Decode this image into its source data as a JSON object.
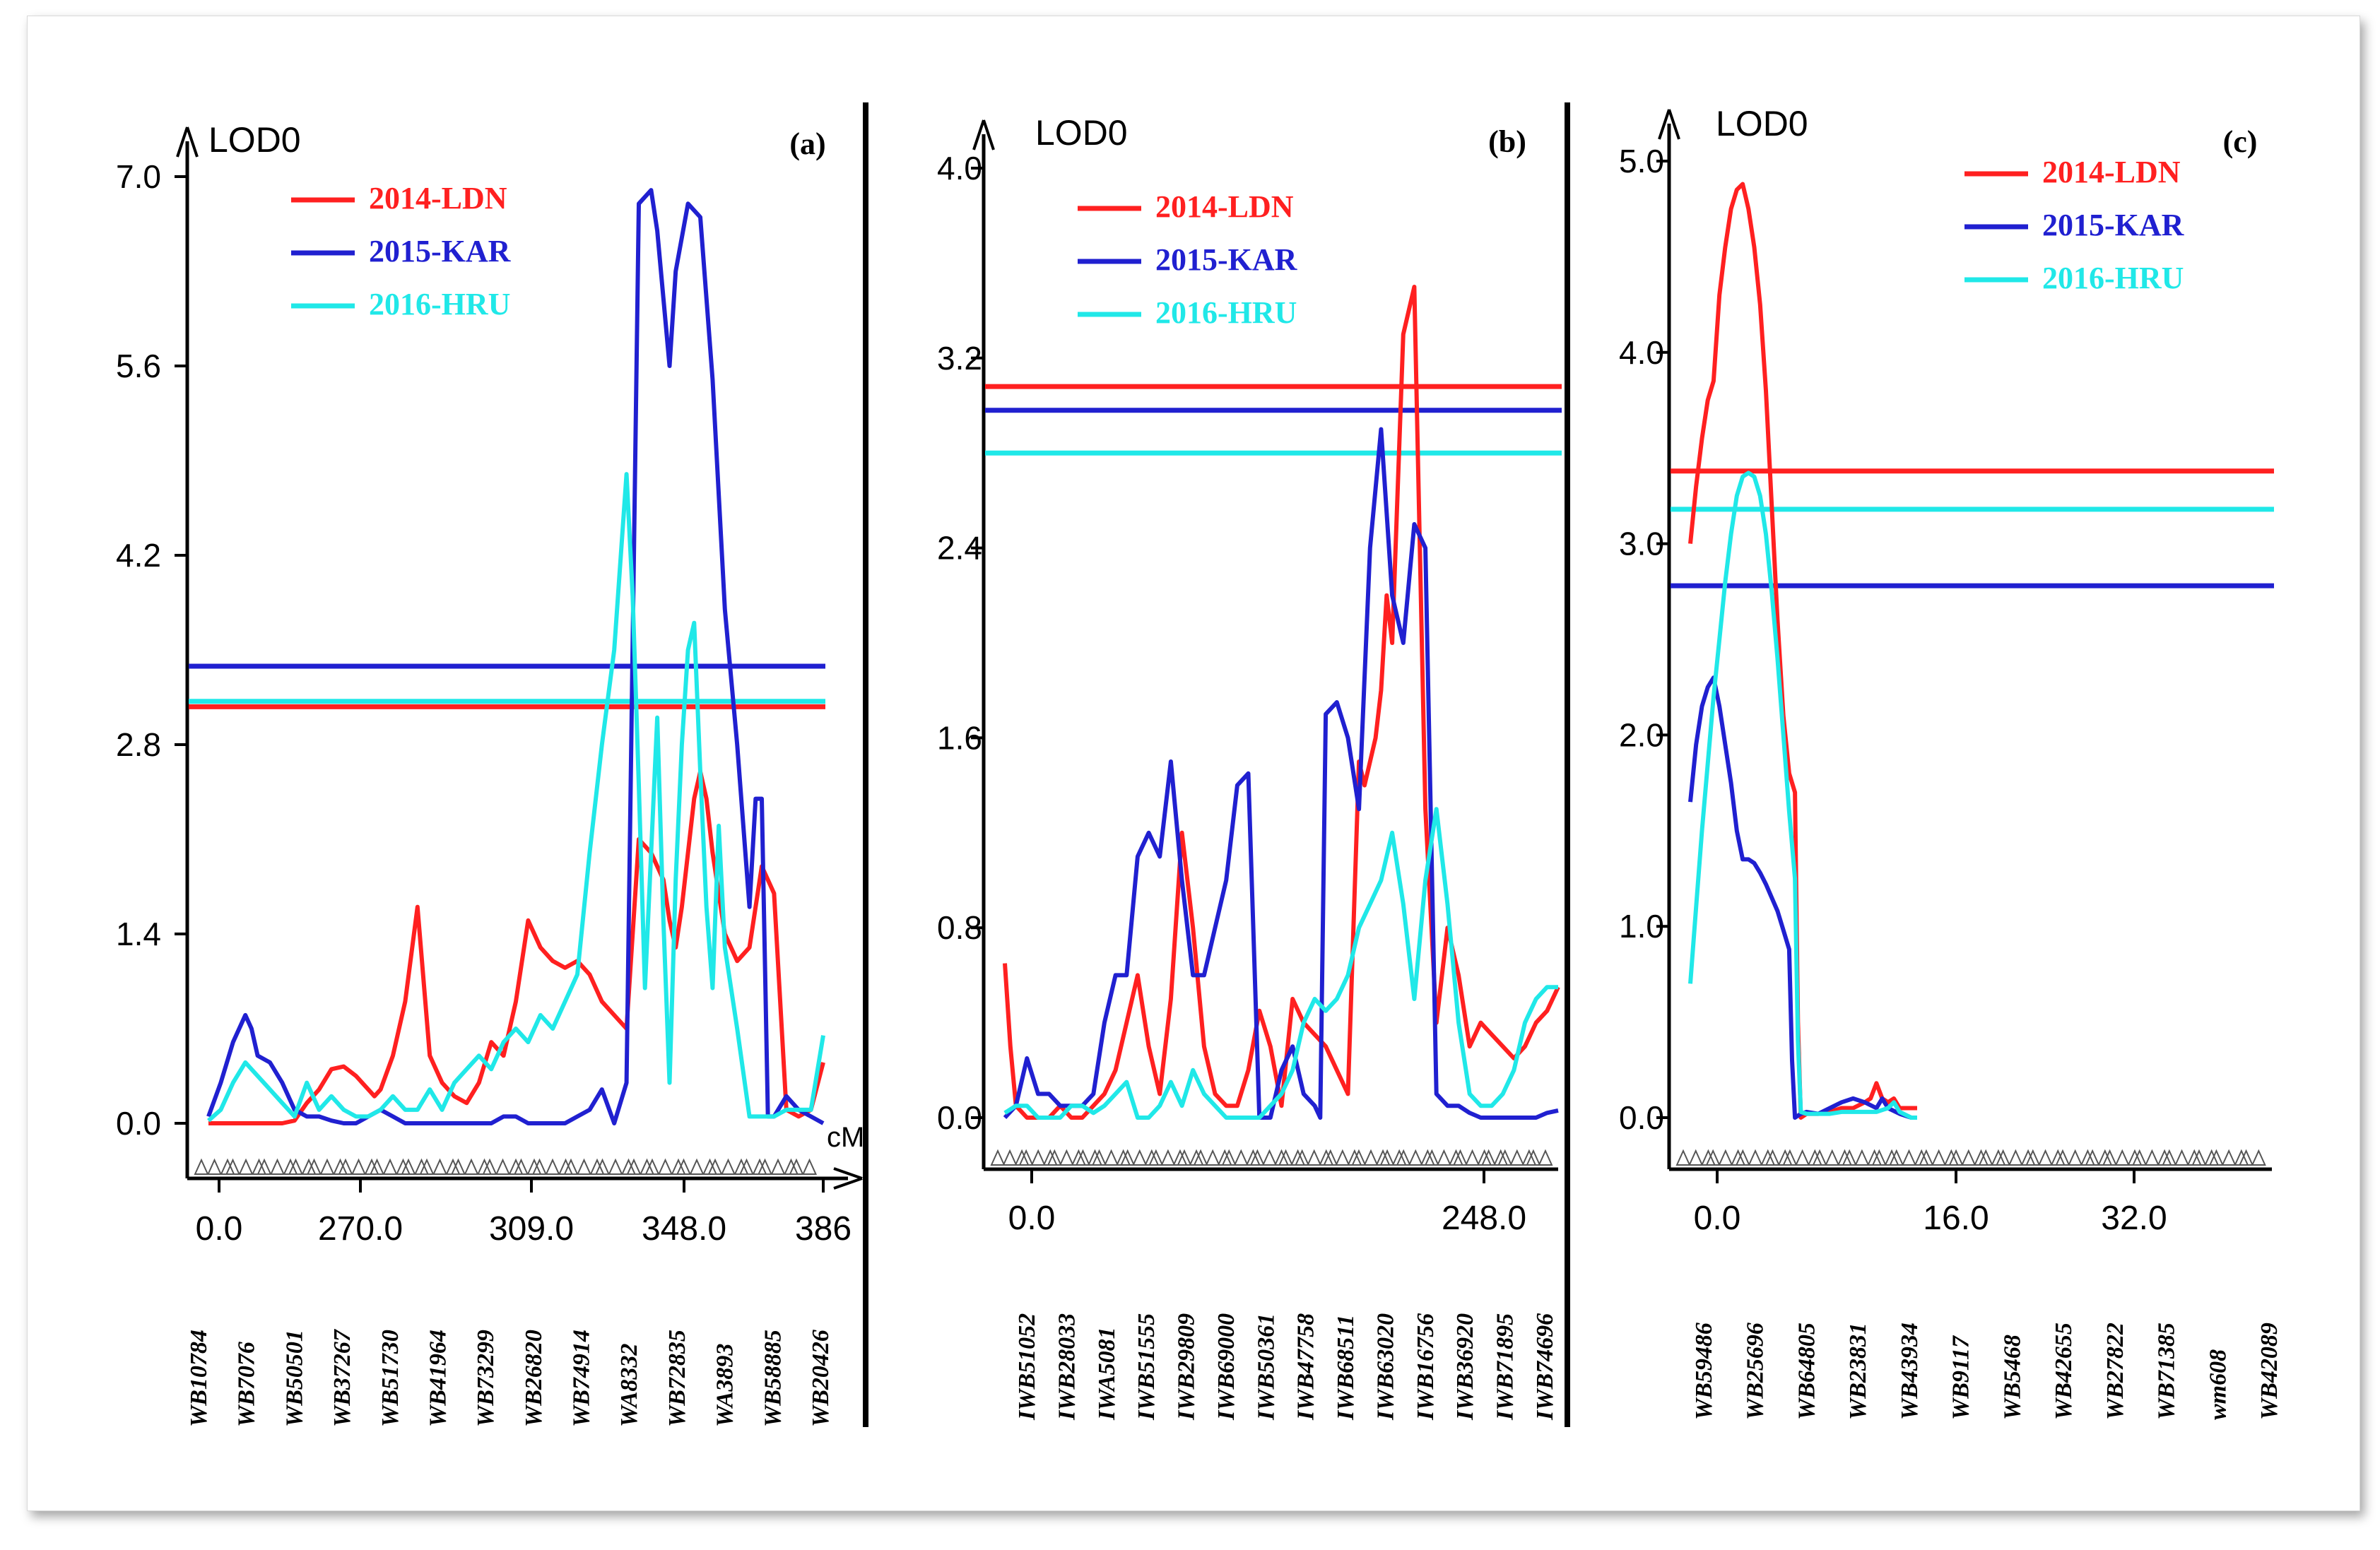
{
  "figure": {
    "colors": {
      "ldn": "#ff2020",
      "kar": "#2020d0",
      "hru": "#20e8e8",
      "axis": "#000000"
    }
  },
  "chart_data": [
    {
      "id": "a",
      "type": "line",
      "panel_label": "(a)",
      "ylabel": "LOD0",
      "xlabel": "cM",
      "ylim": [
        0,
        7.0
      ],
      "y_ticks": [
        "0.0",
        "1.4",
        "2.8",
        "4.2",
        "5.6",
        "7.0"
      ],
      "x_ticks": [
        "0.0",
        "270.0",
        "309.0",
        "348.0",
        "386"
      ],
      "markers": [
        "WB10784",
        "WB7076",
        "WB50501",
        "WB37267",
        "WB51730",
        "WB41964",
        "WB73299",
        "WB26820",
        "WB74914",
        "WA8332",
        "WB72835",
        "WA3893",
        "WB58885",
        "WB20426"
      ],
      "thresholds": [
        {
          "series": "2015-KAR",
          "value": 3.38
        },
        {
          "series": "2016-HRU",
          "value": 3.12
        },
        {
          "series": "2014-LDN",
          "value": 3.08
        }
      ],
      "series": [
        {
          "name": "2014-LDN",
          "color": "#ff2020",
          "x": [
            0,
            2,
            4,
            6,
            8,
            10,
            12,
            14,
            16,
            18,
            20,
            22,
            24,
            26,
            27,
            28,
            30,
            32,
            34,
            36,
            38,
            40,
            42,
            44,
            46,
            48,
            50,
            52,
            54,
            56,
            58,
            60,
            62,
            64,
            66,
            68,
            70,
            72,
            74,
            75,
            76,
            77,
            78,
            79,
            80,
            81,
            82,
            84,
            86,
            88,
            90,
            92,
            94,
            96,
            98,
            100
          ],
          "values": [
            0.0,
            0.0,
            0.0,
            0.0,
            0.0,
            0.0,
            0.0,
            0.02,
            0.15,
            0.25,
            0.4,
            0.42,
            0.35,
            0.25,
            0.2,
            0.25,
            0.5,
            0.9,
            1.6,
            0.5,
            0.3,
            0.2,
            0.15,
            0.3,
            0.6,
            0.5,
            0.9,
            1.5,
            1.3,
            1.2,
            1.15,
            1.2,
            1.1,
            0.9,
            0.8,
            0.7,
            2.1,
            2.0,
            1.8,
            1.5,
            1.3,
            1.6,
            2.0,
            2.4,
            2.6,
            2.4,
            2.0,
            1.4,
            1.2,
            1.3,
            1.9,
            1.7,
            0.1,
            0.05,
            0.1,
            0.45
          ]
        },
        {
          "name": "2015-KAR",
          "color": "#2020d0",
          "x": [
            0,
            2,
            4,
            6,
            7,
            8,
            10,
            12,
            14,
            16,
            18,
            20,
            22,
            24,
            26,
            28,
            30,
            32,
            34,
            36,
            38,
            40,
            42,
            44,
            46,
            48,
            50,
            52,
            54,
            56,
            58,
            60,
            62,
            64,
            66,
            68,
            70,
            72,
            73,
            74,
            75,
            76,
            78,
            80,
            82,
            84,
            86,
            88,
            89,
            90,
            91,
            92,
            94,
            96,
            98,
            100
          ],
          "values": [
            0.05,
            0.3,
            0.6,
            0.8,
            0.7,
            0.5,
            0.45,
            0.3,
            0.1,
            0.05,
            0.05,
            0.02,
            0.0,
            0.0,
            0.05,
            0.1,
            0.05,
            0.0,
            0.0,
            0.0,
            0.0,
            0.0,
            0.0,
            0.0,
            0.0,
            0.05,
            0.05,
            0.0,
            0.0,
            0.0,
            0.0,
            0.05,
            0.1,
            0.25,
            0.0,
            0.3,
            6.8,
            6.9,
            6.6,
            6.1,
            5.6,
            6.3,
            6.8,
            6.7,
            5.5,
            3.8,
            2.8,
            1.6,
            2.4,
            2.4,
            0.05,
            0.05,
            0.2,
            0.1,
            0.05,
            0.0
          ]
        },
        {
          "name": "2016-HRU",
          "color": "#20e8e8",
          "x": [
            0,
            2,
            4,
            6,
            8,
            10,
            12,
            14,
            16,
            18,
            20,
            22,
            24,
            26,
            28,
            30,
            32,
            34,
            36,
            38,
            40,
            42,
            44,
            46,
            48,
            50,
            52,
            54,
            56,
            58,
            60,
            62,
            64,
            66,
            68,
            69,
            70,
            71,
            72,
            73,
            74,
            75,
            76,
            77,
            78,
            79,
            80,
            81,
            82,
            83,
            84,
            86,
            88,
            90,
            92,
            94,
            96,
            98,
            100
          ],
          "values": [
            0.02,
            0.1,
            0.3,
            0.45,
            0.35,
            0.25,
            0.15,
            0.05,
            0.3,
            0.1,
            0.2,
            0.1,
            0.05,
            0.05,
            0.1,
            0.2,
            0.1,
            0.1,
            0.25,
            0.1,
            0.3,
            0.4,
            0.5,
            0.4,
            0.6,
            0.7,
            0.6,
            0.8,
            0.7,
            0.9,
            1.1,
            2.0,
            2.8,
            3.5,
            4.8,
            3.9,
            2.5,
            1.0,
            2.0,
            3.0,
            1.5,
            0.3,
            1.8,
            2.8,
            3.5,
            3.7,
            2.6,
            1.6,
            1.0,
            2.2,
            1.3,
            0.7,
            0.05,
            0.05,
            0.05,
            0.1,
            0.1,
            0.1,
            0.65
          ]
        }
      ]
    },
    {
      "id": "b",
      "type": "line",
      "panel_label": "(b)",
      "ylabel": "LOD0",
      "xlabel": "",
      "ylim": [
        0,
        4.0
      ],
      "y_ticks": [
        "0.0",
        "0.8",
        "1.6",
        "2.4",
        "3.2",
        "4.0"
      ],
      "x_ticks": [
        "0.0",
        "248.0"
      ],
      "markers": [
        "IWB51052",
        "IWB28033",
        "IWA5081",
        "IWB51555",
        "IWB29809",
        "IWB69000",
        "IWB50361",
        "IWB47758",
        "IWB68511",
        "IWB63020",
        "IWB16756",
        "IWB36920",
        "IWB71895",
        "IWB74696"
      ],
      "thresholds": [
        {
          "series": "2014-LDN",
          "value": 3.08
        },
        {
          "series": "2015-KAR",
          "value": 2.98
        },
        {
          "series": "2016-HRU",
          "value": 2.8
        }
      ],
      "series": [
        {
          "name": "2014-LDN",
          "color": "#ff2020",
          "x": [
            0,
            1,
            2,
            4,
            6,
            8,
            10,
            12,
            14,
            16,
            18,
            20,
            22,
            24,
            26,
            28,
            30,
            32,
            34,
            36,
            38,
            40,
            42,
            44,
            46,
            48,
            50,
            52,
            54,
            56,
            58,
            60,
            62,
            64,
            65,
            66,
            67,
            68,
            69,
            70,
            72,
            74,
            76,
            78,
            80,
            82,
            84,
            86,
            88,
            90,
            92,
            94,
            96,
            98,
            100
          ],
          "values": [
            0.65,
            0.3,
            0.05,
            0.0,
            0.0,
            0.0,
            0.05,
            0.0,
            0.0,
            0.05,
            0.1,
            0.2,
            0.4,
            0.6,
            0.3,
            0.1,
            0.5,
            1.2,
            0.8,
            0.3,
            0.1,
            0.05,
            0.05,
            0.2,
            0.45,
            0.3,
            0.05,
            0.5,
            0.4,
            0.35,
            0.3,
            0.2,
            0.1,
            1.5,
            1.4,
            1.5,
            1.6,
            1.8,
            2.2,
            2.0,
            3.3,
            3.5,
            1.3,
            0.4,
            0.8,
            0.6,
            0.3,
            0.4,
            0.35,
            0.3,
            0.25,
            0.3,
            0.4,
            0.45,
            0.55
          ]
        },
        {
          "name": "2015-KAR",
          "color": "#2020d0",
          "x": [
            0,
            2,
            4,
            6,
            8,
            10,
            12,
            14,
            16,
            18,
            20,
            22,
            24,
            26,
            28,
            30,
            32,
            34,
            36,
            38,
            40,
            42,
            44,
            46,
            48,
            50,
            52,
            54,
            56,
            57,
            58,
            60,
            62,
            64,
            66,
            68,
            70,
            72,
            74,
            76,
            78,
            80,
            82,
            84,
            86,
            88,
            90,
            92,
            94,
            96,
            98,
            100
          ],
          "values": [
            0.0,
            0.05,
            0.25,
            0.1,
            0.1,
            0.05,
            0.05,
            0.05,
            0.1,
            0.4,
            0.6,
            0.6,
            1.1,
            1.2,
            1.1,
            1.5,
            1.0,
            0.6,
            0.6,
            0.8,
            1.0,
            1.4,
            1.45,
            0.0,
            0.0,
            0.2,
            0.3,
            0.1,
            0.05,
            0.0,
            1.7,
            1.75,
            1.6,
            1.3,
            2.4,
            2.9,
            2.2,
            2.0,
            2.5,
            2.4,
            0.1,
            0.05,
            0.05,
            0.02,
            0.0,
            0.0,
            0.0,
            0.0,
            0.0,
            0.0,
            0.02,
            0.03
          ]
        },
        {
          "name": "2016-HRU",
          "color": "#20e8e8",
          "x": [
            0,
            2,
            4,
            6,
            8,
            10,
            12,
            14,
            16,
            18,
            20,
            22,
            24,
            26,
            28,
            30,
            32,
            34,
            36,
            38,
            40,
            42,
            44,
            46,
            48,
            50,
            52,
            54,
            56,
            58,
            60,
            62,
            64,
            66,
            68,
            70,
            72,
            74,
            76,
            78,
            80,
            82,
            84,
            86,
            88,
            90,
            92,
            94,
            96,
            98,
            100
          ],
          "values": [
            0.02,
            0.05,
            0.05,
            0.0,
            0.0,
            0.0,
            0.05,
            0.05,
            0.02,
            0.05,
            0.1,
            0.15,
            0.0,
            0.0,
            0.05,
            0.15,
            0.05,
            0.2,
            0.1,
            0.05,
            0.0,
            0.0,
            0.0,
            0.0,
            0.05,
            0.1,
            0.2,
            0.4,
            0.5,
            0.45,
            0.5,
            0.6,
            0.8,
            0.9,
            1.0,
            1.2,
            0.9,
            0.5,
            1.0,
            1.3,
            0.9,
            0.4,
            0.1,
            0.05,
            0.05,
            0.1,
            0.2,
            0.4,
            0.5,
            0.55,
            0.55
          ]
        }
      ]
    },
    {
      "id": "c",
      "type": "line",
      "panel_label": "(c)",
      "ylabel": "LOD0",
      "xlabel": "",
      "ylim": [
        0,
        5.0
      ],
      "y_ticks": [
        "0.0",
        "1.0",
        "2.0",
        "3.0",
        "4.0",
        "5.0"
      ],
      "x_ticks": [
        "0.0",
        "16.0",
        "32.0"
      ],
      "markers": [
        "WB59486",
        "WB25696",
        "WB64805",
        "WB23831",
        "WB43934",
        "WB9117",
        "WB5468",
        "WB42655",
        "WB27822",
        "WB71385",
        "wm608",
        "WB42089"
      ],
      "thresholds": [
        {
          "series": "2014-LDN",
          "value": 3.38
        },
        {
          "series": "2016-HRU",
          "value": 3.18
        },
        {
          "series": "2015-KAR",
          "value": 2.78
        }
      ],
      "series": [
        {
          "name": "2014-LDN",
          "color": "#ff2020",
          "x": [
            0,
            1,
            2,
            3,
            4,
            5,
            6,
            7,
            8,
            9,
            10,
            11,
            12,
            13,
            14,
            15,
            16,
            17,
            18,
            18.5,
            19,
            20,
            22,
            24,
            26,
            28,
            30,
            31,
            32,
            33,
            34,
            35,
            36,
            38,
            39
          ],
          "values": [
            3.0,
            3.3,
            3.55,
            3.75,
            3.85,
            4.3,
            4.55,
            4.75,
            4.85,
            4.88,
            4.75,
            4.55,
            4.25,
            3.8,
            3.2,
            2.6,
            2.1,
            1.8,
            1.7,
            0.5,
            0.0,
            0.02,
            0.02,
            0.03,
            0.05,
            0.05,
            0.08,
            0.1,
            0.18,
            0.1,
            0.08,
            0.1,
            0.05,
            0.05,
            0.05
          ]
        },
        {
          "name": "2015-KAR",
          "color": "#2020d0",
          "x": [
            0,
            1,
            2,
            3,
            4,
            5,
            6,
            7,
            8,
            9,
            10,
            11,
            12,
            13,
            14,
            15,
            16,
            17,
            17.5,
            18,
            19,
            20,
            22,
            24,
            26,
            28,
            30,
            32,
            33,
            34,
            36,
            38,
            39
          ],
          "values": [
            1.65,
            1.95,
            2.15,
            2.25,
            2.3,
            2.15,
            1.95,
            1.75,
            1.5,
            1.35,
            1.35,
            1.33,
            1.28,
            1.22,
            1.15,
            1.08,
            0.98,
            0.88,
            0.3,
            0.0,
            0.02,
            0.03,
            0.02,
            0.05,
            0.08,
            0.1,
            0.08,
            0.05,
            0.1,
            0.05,
            0.02,
            0.0,
            0.0
          ]
        },
        {
          "name": "2016-HRU",
          "color": "#20e8e8",
          "x": [
            0,
            1,
            2,
            3,
            4,
            5,
            6,
            7,
            8,
            9,
            10,
            11,
            12,
            13,
            14,
            15,
            16,
            17,
            18,
            18.5,
            19,
            20,
            22,
            24,
            26,
            28,
            30,
            32,
            34,
            35,
            36,
            38,
            39
          ],
          "values": [
            0.7,
            1.1,
            1.5,
            1.85,
            2.2,
            2.5,
            2.8,
            3.05,
            3.25,
            3.35,
            3.37,
            3.35,
            3.25,
            3.05,
            2.75,
            2.4,
            2.0,
            1.6,
            1.25,
            0.4,
            0.03,
            0.02,
            0.02,
            0.02,
            0.03,
            0.03,
            0.03,
            0.03,
            0.05,
            0.08,
            0.03,
            0.0,
            0.0
          ]
        }
      ]
    }
  ]
}
